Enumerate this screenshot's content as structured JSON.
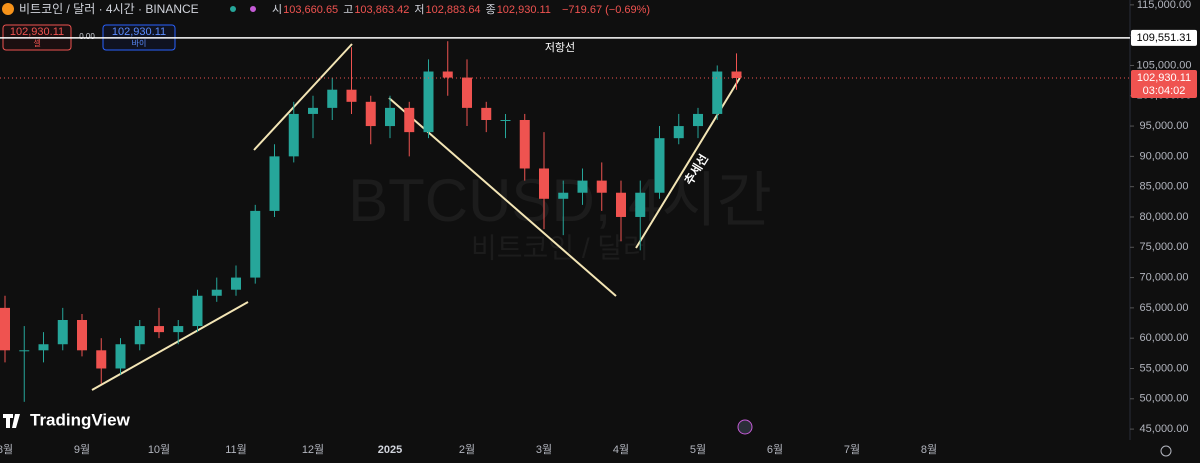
{
  "header": {
    "symbol": "비트코인 / 달러 · 4시간 · BINANCE",
    "ohlc": [
      {
        "label": "시",
        "value": "103,660.65"
      },
      {
        "label": "고",
        "value": "103,863.42"
      },
      {
        "label": "저",
        "value": "102,883.64"
      },
      {
        "label": "종",
        "value": "102,930.11"
      }
    ],
    "change": "−719.67 (−0.69%)"
  },
  "trade": {
    "sell_price": "102,930.11",
    "sell_label": "셀",
    "spread": "0.00",
    "buy_price": "102,930.11",
    "buy_label": "바이"
  },
  "watermark": {
    "line1": "BTCUSD, 4시간",
    "line2": "비트코인 / 달러"
  },
  "logo": "TradingView",
  "chart_data": {
    "type": "candlestick",
    "categories": [
      "8월",
      null,
      null,
      null,
      "9월",
      null,
      null,
      null,
      "10월",
      null,
      null,
      null,
      "11월",
      null,
      null,
      null,
      "12월",
      null,
      null,
      null,
      "2025",
      null,
      null,
      null,
      "2월",
      null,
      null,
      null,
      "3월",
      null,
      null,
      null,
      "4월",
      null,
      null,
      null,
      "5월",
      null,
      null,
      null,
      "6월",
      null,
      null,
      null,
      "7월",
      null,
      null,
      null,
      "8월",
      null,
      null,
      null,
      null,
      null,
      null,
      null,
      null,
      null
    ],
    "open": [
      65000,
      58000,
      58000,
      59000,
      63000,
      58000,
      55000,
      59000,
      62000,
      61000,
      62000,
      67000,
      68000,
      70000,
      81000,
      90000,
      97000,
      98000,
      101000,
      99000,
      95000,
      98000,
      94000,
      104000,
      103000,
      98000,
      96000,
      96000,
      88000,
      83000,
      84000,
      86000,
      84000,
      80000,
      84000,
      93000,
      95000,
      97000,
      104000,
      null,
      null,
      null,
      null,
      null,
      null,
      null,
      null,
      null,
      null,
      null,
      null,
      null,
      null,
      null,
      null,
      null,
      null,
      null
    ],
    "high": [
      67000,
      62000,
      61000,
      65000,
      64000,
      60000,
      60000,
      63000,
      65000,
      63000,
      68000,
      70000,
      72000,
      82000,
      92000,
      99000,
      100000,
      103000,
      108000,
      100000,
      100000,
      99000,
      106000,
      109000,
      106000,
      99000,
      97000,
      97000,
      94000,
      86000,
      88000,
      89000,
      86000,
      86000,
      95000,
      97000,
      98000,
      105000,
      107000,
      null,
      null,
      null,
      null,
      null,
      null,
      null,
      null,
      null,
      null,
      null,
      null,
      null,
      null,
      null,
      null,
      null,
      null,
      null
    ],
    "low": [
      56000,
      49500,
      56000,
      58000,
      57000,
      52500,
      54000,
      58000,
      60000,
      59000,
      61000,
      66000,
      67000,
      69000,
      80000,
      89000,
      93000,
      96000,
      97000,
      92000,
      93000,
      90000,
      93000,
      100000,
      95000,
      94000,
      93000,
      86000,
      78000,
      77000,
      82000,
      81000,
      76000,
      74500,
      83000,
      92000,
      93000,
      96000,
      101000,
      null,
      null,
      null,
      null,
      null,
      null,
      null,
      null,
      null,
      null,
      null,
      null,
      null,
      null,
      null,
      null,
      null,
      null,
      null
    ],
    "close": [
      58000,
      58000,
      59000,
      63000,
      58000,
      55000,
      59000,
      62000,
      61000,
      62000,
      67000,
      68000,
      70000,
      81000,
      90000,
      97000,
      98000,
      101000,
      99000,
      95000,
      98000,
      94000,
      104000,
      103000,
      98000,
      96000,
      96000,
      88000,
      83000,
      84000,
      86000,
      84000,
      80000,
      84000,
      93000,
      95000,
      97000,
      104000,
      102930.11,
      null,
      null,
      null,
      null,
      null,
      null,
      null,
      null,
      null,
      null,
      null,
      null,
      null,
      null,
      null,
      null,
      null,
      null,
      null
    ],
    "up_color": "#26a69a",
    "down_color": "#ef5350",
    "ylim": [
      43200,
      115800
    ],
    "yticks": [
      {
        "value": 45000,
        "label": "45,000.00"
      },
      {
        "value": 50000,
        "label": "50,000.00"
      },
      {
        "value": 55000,
        "label": "55,000.00"
      },
      {
        "value": 60000,
        "label": "60,000.00"
      },
      {
        "value": 65000,
        "label": "65,000.00"
      },
      {
        "value": 70000,
        "label": "70,000.00"
      },
      {
        "value": 75000,
        "label": "75,000.00"
      },
      {
        "value": 80000,
        "label": "80,000.00"
      },
      {
        "value": 85000,
        "label": "85,000.00"
      },
      {
        "value": 90000,
        "label": "90,000.00"
      },
      {
        "value": 95000,
        "label": "95,000.00"
      },
      {
        "value": 100000,
        "label": "100,000.00"
      },
      {
        "value": 105000,
        "label": "105,000.00"
      },
      {
        "value": 110000,
        "label": "110,000.00"
      },
      {
        "value": 115000,
        "label": "115,000.00"
      }
    ],
    "grid": false,
    "resistance": {
      "value": 109551.31,
      "label": "109,551.31",
      "name": "저항선"
    },
    "last_price": {
      "value": 102930.11,
      "label": "102,930.11",
      "countdown": "03:04:02"
    },
    "trend_label": "추세선"
  }
}
